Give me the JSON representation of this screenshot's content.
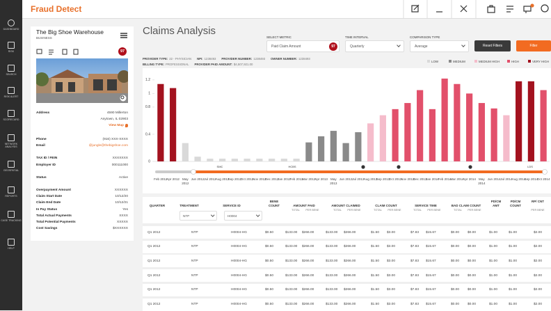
{
  "app": {
    "brand": "Fraud Detect",
    "nav": [
      "DASHBOARD",
      "RISK",
      "SEARCH",
      "RISK ALERT",
      "SCORECARD",
      "NETWORK ANALYSIS",
      "GEOSPATIAL",
      "REPORTS",
      "CASE TRACKING",
      "HELP"
    ]
  },
  "provider": {
    "name": "The Big Shoe Warehouse",
    "kind": "BUSINESS",
    "score": 97,
    "address": {
      "label": "Address",
      "lines": [
        "4590 Millerton",
        "Anytown, IL 02903"
      ],
      "link": "View Map"
    },
    "fields": [
      [
        {
          "label": "Phone",
          "value": "(916) XXX-XXXX"
        },
        {
          "label": "Email",
          "value": "@jungle@thebigshoe.com"
        }
      ],
      [
        {
          "label": "TAX ID / FEIN",
          "value": "XXXXXXX"
        },
        {
          "label": "Employer ID",
          "value": "000111000"
        }
      ],
      [
        {
          "label": "Status",
          "value": "Active"
        }
      ],
      [
        {
          "label": "Overpayment Amount",
          "value": "XXXXXX"
        },
        {
          "label": "Claim Start Date",
          "value": "10/12/20"
        },
        {
          "label": "Claim End Date",
          "value": "10/12/21"
        },
        {
          "label": "In Pay Status",
          "value": "Yes"
        },
        {
          "label": "Total Actual Payments",
          "value": "XXXX"
        },
        {
          "label": "Total Potential Payments",
          "value": "XXXXX"
        },
        {
          "label": "Cost Savings",
          "value": "$XXXXXX"
        }
      ]
    ]
  },
  "page": {
    "title": "Claims Analysis",
    "controls": [
      {
        "label": "SELECT METRIC",
        "value": "Paid Claim Amount",
        "badge": 97
      },
      {
        "label": "TIME INTERVAL",
        "value": "Quarterly"
      },
      {
        "label": "COMPARISON TYPE",
        "value": "Average"
      }
    ],
    "buttons": [
      "Reset Filters",
      "Filter"
    ],
    "info": [
      [
        {
          "label": "PROVIDER TYPE:",
          "value": "22 - PHYSICIAN"
        },
        {
          "label": "NPI:",
          "value": "1238493"
        },
        {
          "label": "PROVIDER NUMBER:",
          "value": "1238493"
        },
        {
          "label": "OWNER NUMBER:",
          "value": "1238493"
        }
      ],
      [
        {
          "label": "BILLING TYPE:",
          "value": "PROFESSIONAL"
        },
        {
          "label": "PROVIDER PAID AMOUNT:",
          "value": "$4,507,921.00"
        }
      ]
    ]
  },
  "chart_data": {
    "type": "bar",
    "categories": [
      "Feb 2012",
      "Apr 2012",
      "May 2012",
      "Jun 2012",
      "Jul 2012",
      "Aug 2012",
      "Sep 2012",
      "Oct 2012",
      "Nov 2012",
      "Dec 2012",
      "Jan 2013",
      "Feb 2013",
      "Mar 2013",
      "Apr 2013",
      "May 2013",
      "Jun 2013",
      "Jul 2013",
      "Aug 2013",
      "Sep 2013",
      "Oct 2013",
      "Nov 2013",
      "Dec 2013",
      "Jan 2014",
      "Feb 2014",
      "Mar 2014",
      "Apr 2014",
      "May 2014",
      "Jun 2014",
      "Jul 2014",
      "Aug 2014",
      "Sep 2014",
      "Oct 2014"
    ],
    "series": [
      {
        "name": "LOW",
        "color": "#d9d9d9",
        "values": [
          null,
          null,
          0.27,
          0.07,
          0.04,
          0.04,
          0.04,
          0.04,
          0.04,
          0.04,
          0.04,
          0.04,
          null,
          null,
          null,
          null,
          null,
          null,
          null,
          null,
          null,
          null,
          null,
          null,
          null,
          null,
          null,
          null,
          null,
          null,
          null,
          null
        ]
      },
      {
        "name": "MEDIUM",
        "color": "#8a8a8a",
        "values": [
          null,
          null,
          null,
          null,
          null,
          null,
          null,
          null,
          null,
          null,
          null,
          null,
          0.28,
          0.37,
          0.45,
          0.27,
          0.43,
          null,
          null,
          null,
          null,
          null,
          null,
          null,
          null,
          null,
          null,
          null,
          null,
          null,
          null,
          null
        ]
      },
      {
        "name": "MEDIUM HIGH",
        "color": "#f5bccb",
        "values": [
          null,
          null,
          null,
          null,
          null,
          null,
          null,
          null,
          null,
          null,
          null,
          null,
          null,
          null,
          null,
          null,
          null,
          0.56,
          0.68,
          null,
          null,
          null,
          null,
          null,
          null,
          null,
          null,
          null,
          0.68,
          null,
          null,
          null
        ]
      },
      {
        "name": "HIGH",
        "color": "#e2506b",
        "values": [
          null,
          null,
          null,
          null,
          null,
          null,
          null,
          null,
          null,
          null,
          null,
          null,
          null,
          null,
          null,
          null,
          null,
          null,
          null,
          0.77,
          0.86,
          1.05,
          0.77,
          1.22,
          1.14,
          1,
          0.86,
          0.78,
          null,
          null,
          null,
          1.05
        ]
      },
      {
        "name": "VERY HIGH",
        "color": "#a3121f",
        "values": [
          1.14,
          1.08,
          null,
          null,
          null,
          null,
          null,
          null,
          null,
          null,
          null,
          null,
          null,
          null,
          null,
          null,
          null,
          null,
          null,
          null,
          null,
          null,
          null,
          null,
          null,
          null,
          null,
          null,
          null,
          1.18,
          1.18,
          null
        ]
      }
    ],
    "ylim": [
      0,
      1.25
    ],
    "yticks": [
      0,
      0.4,
      0.8,
      1,
      1.2
    ],
    "grid": false,
    "legend": "top-right",
    "annotations": [
      "SMC",
      "HCBS",
      "LDS"
    ]
  },
  "table": {
    "headers": [
      {
        "label": "QUARTER"
      },
      {
        "label": "TREATMENT"
      },
      {
        "label": "SERVICE ID"
      },
      {
        "label": "BENE COUNT"
      },
      {
        "label": "AMOUNT PAID",
        "sub": [
          "TOTAL",
          "PER BENE"
        ]
      },
      {
        "label": "AMOUNT CLAIMED",
        "sub": [
          "TOTAL",
          "PER BENE"
        ]
      },
      {
        "label": "CLAIM COUNT",
        "sub": [
          "TOTAL",
          "PER BENE"
        ]
      },
      {
        "label": "SERVICE TIME",
        "sub": [
          "TOTAL",
          "PER BENE"
        ]
      },
      {
        "label": "BAD CLAIM COUNT",
        "sub": [
          "TOTAL",
          "PER BENE"
        ]
      },
      {
        "label": "PD/CM AMT"
      },
      {
        "label": "PD/CM COUNT"
      },
      {
        "label": "RP/ CNT",
        "sub": [
          "PER BENE"
        ]
      }
    ],
    "filters": [
      "NTP",
      "H0004"
    ],
    "rows": [
      [
        "Q1 2012",
        "NTP",
        "H0004-HG",
        "$0.50",
        "$133.00",
        "$266.00",
        "$133.00",
        "$266.00",
        "$1.50",
        "$3.00",
        "$7.83",
        "$15.67",
        "$0.00",
        "$0.00",
        "$1.00",
        "$1.00",
        "$2.00"
      ],
      [
        "Q1 2012",
        "NTP",
        "H0004-HG",
        "$0.50",
        "$133.00",
        "$266.00",
        "$133.00",
        "$266.00",
        "$1.50",
        "$3.00",
        "$7.83",
        "$15.67",
        "$0.00",
        "$0.00",
        "$1.00",
        "$1.00",
        "$2.00"
      ],
      [
        "Q1 2012",
        "NTP",
        "H0004-HG",
        "$0.50",
        "$133.00",
        "$266.00",
        "$133.00",
        "$266.00",
        "$1.50",
        "$3.00",
        "$7.83",
        "$15.67",
        "$0.00",
        "$0.00",
        "$1.00",
        "$1.00",
        "$2.00"
      ],
      [
        "Q1 2012",
        "NTP",
        "H0004-HG",
        "$0.50",
        "$133.00",
        "$266.00",
        "$133.00",
        "$266.00",
        "$1.50",
        "$3.00",
        "$7.83",
        "$15.67",
        "$0.00",
        "$0.00",
        "$1.00",
        "$1.00",
        "$2.00"
      ],
      [
        "Q1 2012",
        "NTP",
        "H0004-HG",
        "$0.50",
        "$133.00",
        "$266.00",
        "$133.00",
        "$266.00",
        "$1.50",
        "$3.00",
        "$7.83",
        "$15.67",
        "$0.00",
        "$0.00",
        "$1.00",
        "$1.00",
        "$2.00"
      ],
      [
        "Q1 2012",
        "NTP",
        "H0004-HG",
        "$0.50",
        "$133.00",
        "$266.00",
        "$133.00",
        "$266.00",
        "$1.50",
        "$3.00",
        "$7.83",
        "$15.67",
        "$0.00",
        "$0.00",
        "$1.00",
        "$1.00",
        "$2.00"
      ]
    ]
  }
}
